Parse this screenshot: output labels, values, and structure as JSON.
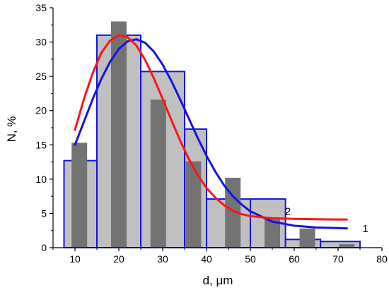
{
  "chart_data": {
    "type": "bar",
    "title": "",
    "xlabel": "d, μm",
    "ylabel": "N, %",
    "xlim": [
      5,
      80
    ],
    "ylim": [
      0,
      35
    ],
    "xticks": [
      10,
      20,
      30,
      40,
      50,
      60,
      70,
      80
    ],
    "yticks": [
      0,
      5,
      10,
      15,
      20,
      25,
      30,
      35
    ],
    "grid": false,
    "histogram_bins": [
      {
        "x0": 7.5,
        "x1": 15,
        "value": 12.7
      },
      {
        "x0": 15,
        "x1": 25,
        "value": 31.0
      },
      {
        "x0": 25,
        "x1": 35,
        "value": 25.7
      },
      {
        "x0": 35,
        "x1": 40,
        "value": 17.3
      },
      {
        "x0": 40,
        "x1": 50,
        "value": 7.1
      },
      {
        "x0": 50,
        "x1": 58,
        "value": 7.1
      },
      {
        "x0": 58,
        "x1": 66,
        "value": 1.2
      },
      {
        "x0": 66,
        "x1": 75,
        "value": 0.9
      }
    ],
    "bars": [
      {
        "x": 11,
        "value": 15.3
      },
      {
        "x": 20,
        "value": 33.0
      },
      {
        "x": 29,
        "value": 21.6
      },
      {
        "x": 37,
        "value": 12.6
      },
      {
        "x": 46,
        "value": 10.2
      },
      {
        "x": 55,
        "value": 4.2
      },
      {
        "x": 63,
        "value": 2.8
      },
      {
        "x": 72,
        "value": 0.5
      }
    ],
    "series": [
      {
        "label": "1",
        "color": "#1414e0",
        "x": [
          10,
          12,
          14,
          16,
          18,
          20,
          22,
          24,
          26,
          28,
          30,
          32,
          34,
          36,
          38,
          40,
          42,
          44,
          46,
          48,
          50,
          55,
          60,
          65,
          70,
          72
        ],
        "y": [
          15.0,
          18.3,
          21.6,
          24.6,
          27.1,
          29.0,
          30.1,
          30.4,
          29.9,
          28.6,
          26.7,
          24.3,
          21.6,
          18.8,
          16.0,
          13.4,
          11.1,
          9.1,
          7.5,
          6.3,
          5.3,
          3.8,
          3.2,
          2.95,
          2.85,
          2.8
        ]
      },
      {
        "label": "2",
        "color": "#ff1414",
        "x": [
          10,
          12,
          14,
          16,
          18,
          20,
          22,
          24,
          26,
          28,
          30,
          32,
          34,
          36,
          38,
          40,
          42,
          44,
          46,
          48,
          50,
          55,
          60,
          65,
          70,
          72
        ],
        "y": [
          17.2,
          21.6,
          25.4,
          28.4,
          30.2,
          31.0,
          30.7,
          29.5,
          27.4,
          24.7,
          21.7,
          18.6,
          15.6,
          12.9,
          10.6,
          8.7,
          7.3,
          6.2,
          5.4,
          4.9,
          4.6,
          4.3,
          4.2,
          4.15,
          4.1,
          4.1
        ]
      }
    ],
    "colors": {
      "hist_fill": "#c0c0c0",
      "hist_stroke": "#1414e0",
      "bar_fill": "#737373"
    }
  }
}
